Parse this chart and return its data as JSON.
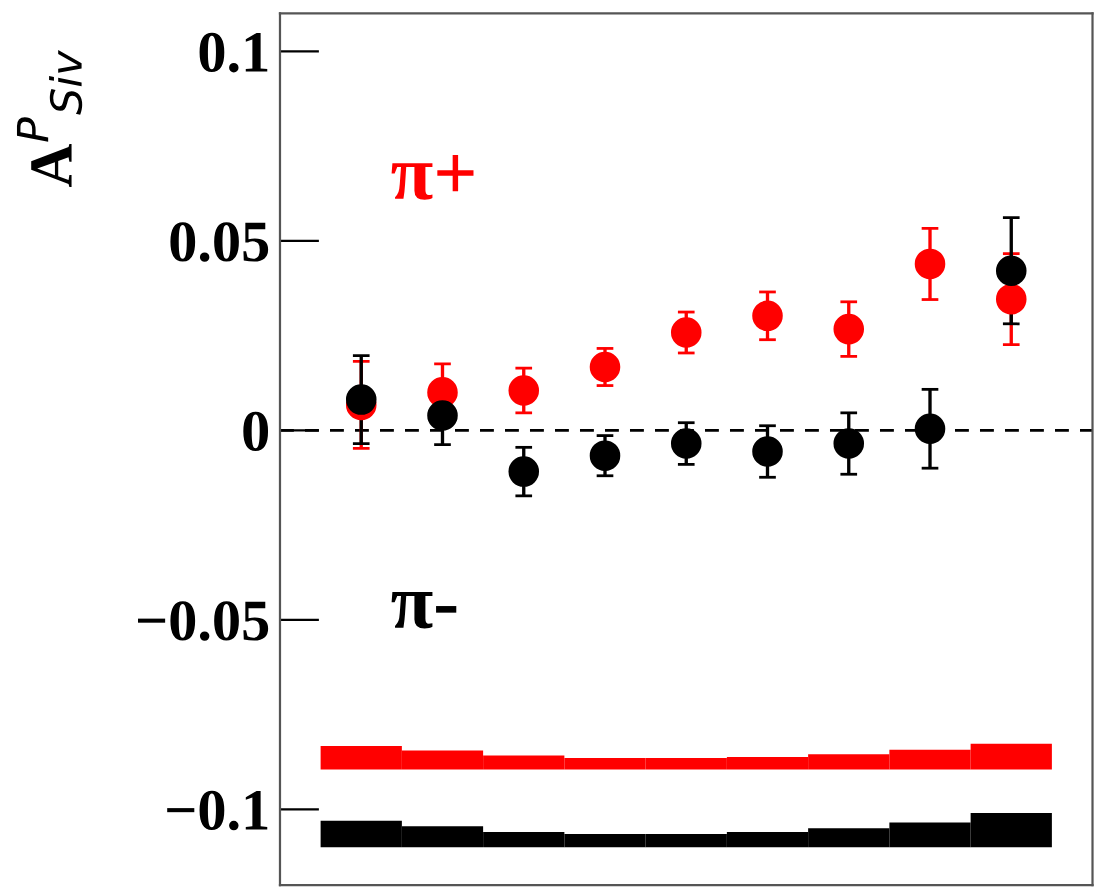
{
  "chart_data": {
    "type": "scatter",
    "ylabel": "A$^{P}$$_{Siv}$",
    "categories": [
      null,
      null,
      null,
      null,
      null,
      null,
      null,
      null,
      null
    ],
    "ylim": [
      -0.12,
      0.11
    ],
    "yticks": [
      {
        "value": -0.1,
        "label": "−0.1"
      },
      {
        "value": -0.05,
        "label": "−0.05"
      },
      0,
      0.05,
      0.1
    ],
    "marker": "circle",
    "legend": "left",
    "grid": false,
    "tick_labels": "y",
    "ref_lines": [
      {
        "axis": "y",
        "value": 0,
        "line_style": "dashed",
        "color": "#000000"
      }
    ],
    "series": [
      {
        "name": "π+",
        "color": "#ff0000",
        "values": [
          0.0067,
          0.01,
          0.0105,
          0.0167,
          0.0258,
          0.0302,
          0.0267,
          0.0439,
          0.0346
        ],
        "errors": [
          0.0115,
          0.0075,
          0.0059,
          0.0049,
          0.0054,
          0.0063,
          0.0072,
          0.0094,
          0.012
        ]
      },
      {
        "name": "π-",
        "color": "#000000",
        "values": [
          0.0081,
          0.0039,
          -0.0109,
          -0.0067,
          -0.0035,
          -0.0056,
          -0.0035,
          0.0004,
          0.0421
        ],
        "errors": [
          0.0116,
          0.0077,
          0.0064,
          0.0053,
          0.0055,
          0.0068,
          0.0081,
          0.0104,
          0.014
        ]
      },
      {
        "type": "bar",
        "color": "#ff0000",
        "base": [
          -0.0895,
          -0.0895,
          -0.0895,
          -0.0895,
          -0.0895,
          -0.0895,
          -0.0895,
          -0.0895,
          -0.0895
        ],
        "values": [
          0.0062,
          0.005,
          0.0037,
          0.003,
          0.003,
          0.0033,
          0.004,
          0.0052,
          0.0068
        ]
      },
      {
        "type": "bar",
        "color": "#000000",
        "base": [
          -0.11,
          -0.11,
          -0.11,
          -0.11,
          -0.11,
          -0.11,
          -0.11,
          -0.11,
          -0.11
        ],
        "values": [
          0.007,
          0.0055,
          0.004,
          0.0035,
          0.0035,
          0.004,
          0.005,
          0.0065,
          0.009
        ]
      }
    ]
  }
}
